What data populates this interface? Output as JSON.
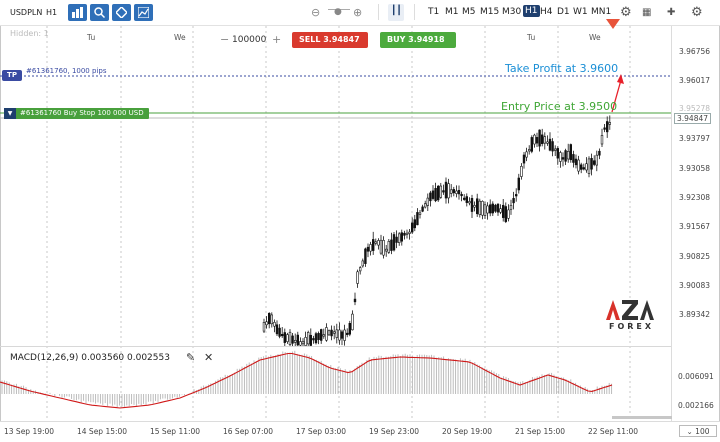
{
  "toolbar": {
    "symbol": "USDPLN",
    "timeframe": "H1",
    "zoom_out": "⊖",
    "zoom_slider": "●",
    "zoom_in": "⊕",
    "chart_type": "┃┃",
    "timeframes": [
      "T1",
      "M1",
      "M5",
      "M15",
      "M30",
      "H1",
      "H4",
      "D1",
      "W1",
      "MN1"
    ],
    "active_timeframe": "H1",
    "settings_icon": "⚙",
    "fullscreen_icon": "⚙"
  },
  "chart": {
    "hidden_label": "Hidden: 1",
    "days": [
      "Tu",
      "We",
      "Tu",
      "We"
    ],
    "volume_minus": "−",
    "volume": "100000",
    "volume_plus": "+",
    "sell_label": "SELL 3.94847",
    "buy_label": "BUY 3.94918",
    "tp_tag": "TP",
    "tp_text": "#61361760, 1000 pips",
    "order_text": "#61361760 Buy Stop 100 000 USD",
    "take_profit_annotation": "Take Profit at 3.9600",
    "entry_annotation": "Entry Price at 3.9500",
    "price_labels": [
      "3.96756",
      "3.96017",
      "3.95278",
      "3.94847",
      "3.93797",
      "3.93058",
      "3.92308",
      "3.91567",
      "3.90825",
      "3.90083",
      "3.89342"
    ],
    "current_price": "3.94847",
    "logo_text": "AZA",
    "logo_sub": "FOREX",
    "accent_sell": "#d93a2e",
    "accent_buy": "#4caa3d",
    "tp_color": "#3a4ba2"
  },
  "macd": {
    "title": "MACD(12,26,9) 0.003560 0.002553",
    "pencil_icon": "✎",
    "close_icon": "✕",
    "labels": [
      "0.006091",
      "0.002166"
    ]
  },
  "time_axis": {
    "labels": [
      "13 Sep 19:00",
      "14 Sep 15:00",
      "15 Sep 11:00",
      "16 Sep 07:00",
      "17 Sep 03:00",
      "19 Sep 23:00",
      "20 Sep 19:00",
      "21 Sep 15:00",
      "22 Sep 11:00"
    ],
    "zoom": "100"
  }
}
